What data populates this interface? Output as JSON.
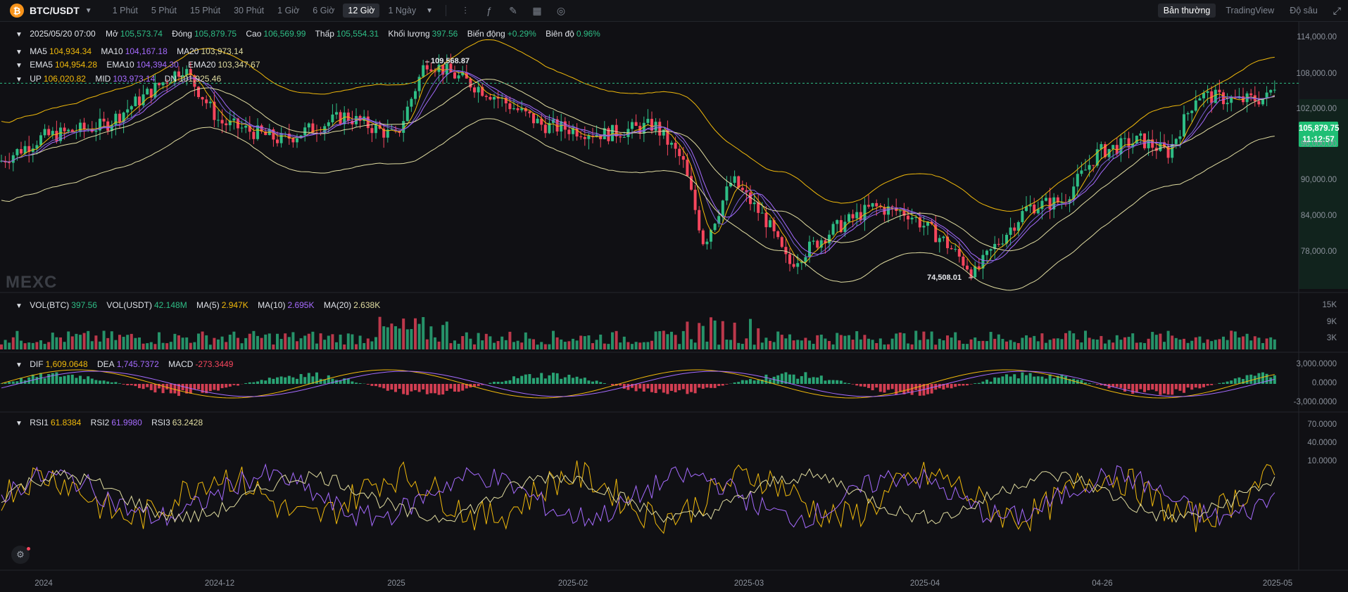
{
  "header": {
    "coin_symbol": "₿",
    "pair": "BTC/USDT",
    "intervals": [
      "1 Phút",
      "5 Phút",
      "15 Phút",
      "30 Phút",
      "1 Giờ",
      "6 Giờ",
      "12 Giờ",
      "1 Ngày"
    ],
    "active_interval": "12 Giờ",
    "views": [
      "Bản thường",
      "TradingView",
      "Độ sâu"
    ],
    "active_view": "Bản thường"
  },
  "ohlc": {
    "date": "2025/05/20 07:00",
    "open_label": "Mở",
    "open": "105,573.74",
    "close_label": "Đóng",
    "close": "105,879.75",
    "high_label": "Cao",
    "high": "106,569.99",
    "low_label": "Thấp",
    "low": "105,554.31",
    "volume_label": "Khối lượng",
    "volume": "397.56",
    "change_label": "Biến động",
    "change": "+0.29%",
    "amplitude_label": "Biên độ",
    "amplitude": "0.96%"
  },
  "ma": {
    "ma5_label": "MA5",
    "ma5": "104,934.34",
    "ma10_label": "MA10",
    "ma10": "104,167.18",
    "ma20_label": "MA20",
    "ma20": "103,973.14"
  },
  "ema": {
    "ema5_label": "EMA5",
    "ema5": "104,954.28",
    "ema10_label": "EMA10",
    "ema10": "104,394.30",
    "ema20_label": "EMA20",
    "ema20": "103,347.67"
  },
  "boll": {
    "up_label": "UP",
    "up": "106,020.82",
    "mid_label": "MID",
    "mid": "103,973.14",
    "dn_label": "DN",
    "dn": "101,925.46"
  },
  "vol": {
    "btc_label": "VOL(BTC)",
    "btc": "397.56",
    "usdt_label": "VOL(USDT)",
    "usdt": "42.148M",
    "ma5_label": "MA(5)",
    "ma5": "2.947K",
    "ma10_label": "MA(10)",
    "ma10": "2.695K",
    "ma20_label": "MA(20)",
    "ma20": "2.638K"
  },
  "macd": {
    "dif_label": "DIF",
    "dif": "1,609.0648",
    "dea_label": "DEA",
    "dea": "1,745.7372",
    "macd_label": "MACD",
    "macd": "-273.3449"
  },
  "rsi": {
    "rsi1_label": "RSI1",
    "rsi1": "61.8384",
    "rsi2_label": "RSI2",
    "rsi2": "61.9980",
    "rsi3_label": "RSI3",
    "rsi3": "63.2428"
  },
  "price_axis": [
    "114,000.00",
    "108,000.00",
    "102,000.00",
    "96,000.00",
    "90,000.00",
    "84,000.00",
    "78,000.00"
  ],
  "vol_axis": [
    "15K",
    "9K",
    "3K"
  ],
  "macd_axis": [
    "3,000.0000",
    "0.0000",
    "-3,000.0000"
  ],
  "rsi_axis": [
    "70.0000",
    "40.0000",
    "10.0000"
  ],
  "time_axis": [
    "2024",
    "2024-12",
    "2025",
    "2025-02",
    "2025-03",
    "2025-04",
    "04-26",
    "2025-05"
  ],
  "last_price": "105,879.75",
  "countdown": "11:12:57",
  "high_marker": "109,568.87",
  "low_marker": "74,508.01",
  "watermark": "MEXC",
  "colors": {
    "up": "#2ebd85",
    "down": "#f6465d",
    "ma5": "#f0b90b",
    "ma10": "#a66bff",
    "ma20": "#e0dca0",
    "bg": "#101014"
  },
  "chart_data": {
    "type": "candlestick",
    "title": "",
    "x_range": [
      "2024-11",
      "2025-05-20"
    ],
    "ylim": [
      72000,
      116000
    ],
    "anchor_points": [
      {
        "x": "2024-11",
        "y": 98000
      },
      {
        "x": "2024-12",
        "y": 101000
      },
      {
        "x": "2025",
        "y": 104000
      },
      {
        "x": "2025-01",
        "y": 109568.87
      },
      {
        "x": "2025-02",
        "y": 96000
      },
      {
        "x": "2025-03",
        "y": 84000
      },
      {
        "x": "2025-04",
        "y": 74508.01
      },
      {
        "x": "04-26",
        "y": 94000
      },
      {
        "x": "2025-05-20",
        "y": 105879.75
      }
    ]
  }
}
